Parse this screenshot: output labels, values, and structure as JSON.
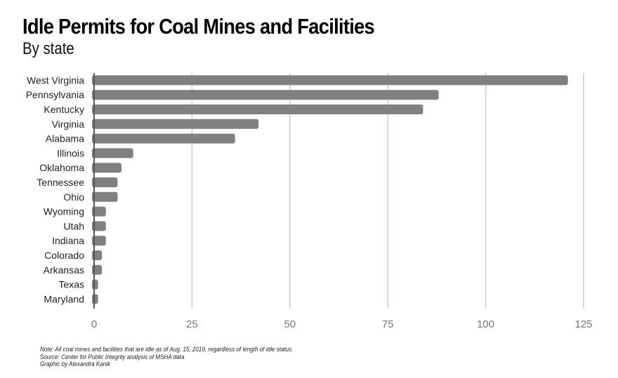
{
  "chart_data": {
    "type": "bar",
    "orientation": "horizontal",
    "title": "Idle Permits for Coal Mines and Facilities",
    "subtitle": "By state",
    "categories": [
      "West Virginia",
      "Pennsylvania",
      "Kentucky",
      "Virginia",
      "Alabama",
      "Illinois",
      "Oklahoma",
      "Tennessee",
      "Ohio",
      "Wyoming",
      "Utah",
      "Indiana",
      "Colorado",
      "Arkansas",
      "Texas",
      "Maryland"
    ],
    "values": [
      121,
      88,
      84,
      42,
      36,
      10,
      7,
      6,
      6,
      3,
      3,
      3,
      2,
      2,
      1,
      1
    ],
    "xlabel": "",
    "ylabel": "",
    "xlim": [
      0,
      125
    ],
    "xticks": [
      "0",
      "25",
      "50",
      "75",
      "100",
      "125"
    ],
    "grid": true,
    "bar_color": "#808080",
    "grid_color": "#cccccc",
    "axis_color": "#555555",
    "tick_label_color": "#777777"
  },
  "notes": {
    "note": "Note: All coal mines and facilities that are idle as of Aug. 15, 2019, regardless of length of idle status.",
    "source": "Source: Center for Public Integrity analysis of MSHA data",
    "credit": "Graphic by Alexandra Kanik"
  }
}
